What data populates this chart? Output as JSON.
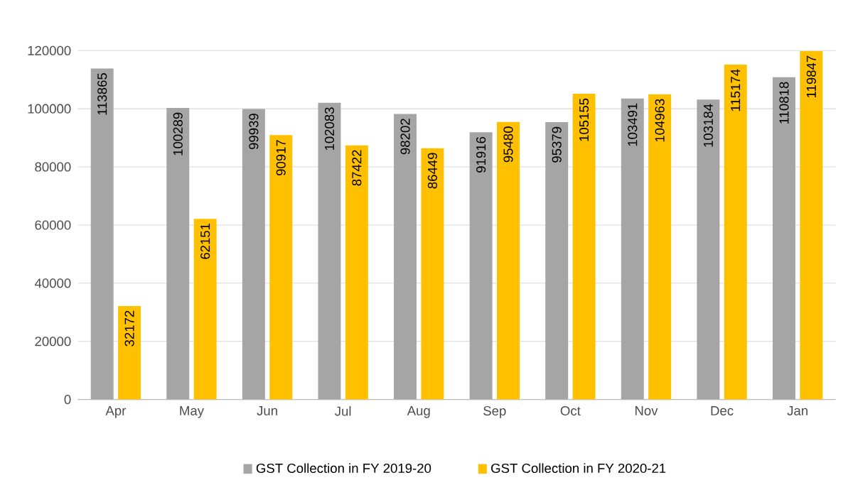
{
  "chart_data": {
    "type": "bar",
    "categories": [
      "Apr",
      "May",
      "Jun",
      "Jul",
      "Aug",
      "Sep",
      "Oct",
      "Nov",
      "Dec",
      "Jan"
    ],
    "series": [
      {
        "name": "GST Collection in FY 2019-20",
        "color": "#a5a5a5",
        "values": [
          113865,
          100289,
          99939,
          102083,
          98202,
          91916,
          95379,
          103491,
          103184,
          110818
        ]
      },
      {
        "name": "GST Collection in FY 2020-21",
        "color": "#ffc000",
        "values": [
          32172,
          62151,
          90917,
          87422,
          86449,
          95480,
          105155,
          104963,
          115174,
          119847
        ]
      }
    ],
    "ylim": [
      0,
      120000
    ],
    "yticks": [
      0,
      20000,
      40000,
      60000,
      80000,
      100000,
      120000
    ],
    "grid": "y",
    "legend": "bottom",
    "data_labels": true
  }
}
